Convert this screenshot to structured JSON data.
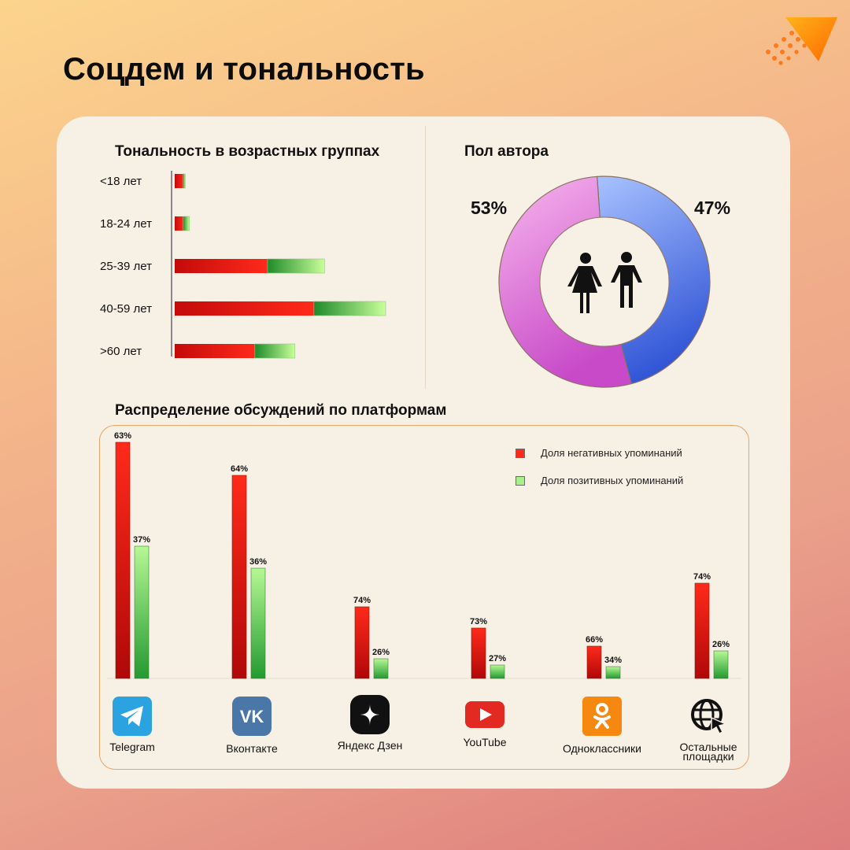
{
  "page": {
    "title": "Соцдем и тональность"
  },
  "colors": {
    "negative": "#ff2a1a",
    "positive": "#a8f08a",
    "female": "#e070d8",
    "male": "#5a82e8"
  },
  "chart_data": [
    {
      "id": "age",
      "type": "bar",
      "orientation": "horizontal",
      "stacked": true,
      "title": "Тональность в возрастных группах",
      "categories": [
        "<18 лет",
        "18-24 лет",
        "25-39 лет",
        "40-59 лет",
        ">60 лет"
      ],
      "series": [
        {
          "values": [
            4,
            4,
            44,
            66,
            38
          ]
        },
        {
          "values": [
            1,
            3,
            27,
            34,
            19
          ]
        }
      ]
    },
    {
      "id": "gender",
      "type": "pie",
      "donut": true,
      "title": "Пол автора",
      "slices": [
        {
          "label": "Женщины",
          "value": 53,
          "display": "53%",
          "color": "#e070d8"
        },
        {
          "label": "Мужчины",
          "value": 47,
          "display": "47%",
          "color": "#5a82e8"
        }
      ]
    },
    {
      "id": "platforms",
      "type": "bar",
      "title": "Распределение обсуждений по платформам",
      "categories": [
        "Telegram",
        "Вконтакте",
        "Яндекс Дзен",
        "YouTube",
        "Одноклассники",
        "Остальные площадки"
      ],
      "series": [
        {
          "name": "Доля негативных упоминаний",
          "values": [
            63,
            64,
            74,
            73,
            66,
            74
          ],
          "color": "#ff2a1a"
        },
        {
          "name": "Доля позитивных упоминаний",
          "values": [
            37,
            36,
            26,
            27,
            34,
            26
          ],
          "color": "#a8f08a"
        }
      ],
      "bar_heights_relative": {
        "negative": [
          300,
          258,
          91,
          64,
          41,
          121
        ],
        "positive": [
          168,
          140,
          25,
          17,
          15,
          35
        ]
      },
      "legend_position": "top-right"
    }
  ],
  "platforms": {
    "icons": [
      "telegram-icon",
      "vk-icon",
      "dzen-icon",
      "youtube-icon",
      "odnoklassniki-icon",
      "globe-icon"
    ],
    "labels": [
      "Telegram",
      "Вконтакте",
      "Яндекс Дзен",
      "YouTube",
      "Одноклассники",
      "Остальные площадки"
    ],
    "label_lines": [
      [
        "Telegram"
      ],
      [
        "Вконтакте"
      ],
      [
        "Яндекс Дзен"
      ],
      [
        "YouTube"
      ],
      [
        "Одноклассники"
      ],
      [
        "Остальные",
        "площадки"
      ]
    ]
  }
}
